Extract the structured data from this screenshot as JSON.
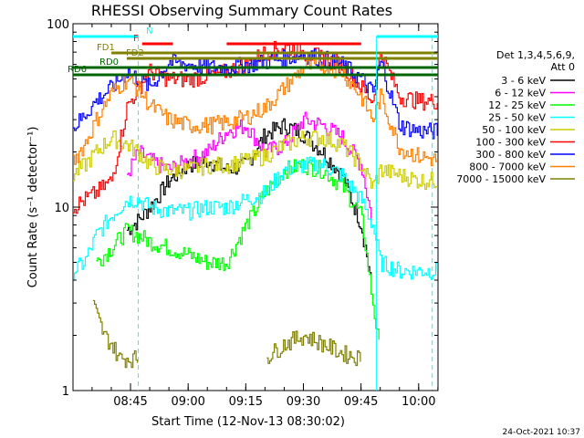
{
  "chart_data": {
    "type": "line",
    "title": "RHESSI Observing Summary Count Rates",
    "xlabel": "Start Time (12-Nov-13 08:30:02)",
    "ylabel": "Count Rate (s⁻¹ detector⁻¹)",
    "yscale": "log",
    "ylim": [
      1,
      100
    ],
    "xlim_minutes_after_0830": [
      0,
      95
    ],
    "x_ticks": [
      "08:45",
      "09:00",
      "09:15",
      "09:30",
      "09:45",
      "10:00"
    ],
    "y_ticks": [
      "1",
      "10",
      "100"
    ],
    "timestamp": "24-Oct-2021 10:37",
    "legend": {
      "header": [
        "Det 1,3,4,5,6,9,",
        "Att 0"
      ],
      "placement": "right",
      "entries": [
        {
          "label": "3 - 6 keV",
          "color": "#000000"
        },
        {
          "label": "6 - 12 keV",
          "color": "#ff00ff"
        },
        {
          "label": "12 - 25 keV",
          "color": "#00ff00"
        },
        {
          "label": "25 - 50 keV",
          "color": "#00ffff"
        },
        {
          "label": "50 - 100 keV",
          "color": "#cccc00"
        },
        {
          "label": "100 - 300 keV",
          "color": "#ff0000"
        },
        {
          "label": "300 - 800 keV",
          "color": "#0000ff"
        },
        {
          "label": "800 - 7000 keV",
          "color": "#ff8000"
        },
        {
          "label": "7000 - 15000 keV",
          "color": "#808000"
        }
      ]
    },
    "flags": [
      {
        "label": "N",
        "color": "#00ffff",
        "segments": [
          [
            0,
            17
          ],
          [
            79,
            95
          ]
        ]
      },
      {
        "label": "F",
        "color": "#ff0000",
        "segments": [
          [
            18,
            26
          ],
          [
            40,
            75
          ]
        ]
      },
      {
        "label": "FD1",
        "color": "#808000",
        "segments": [
          [
            10,
            95
          ]
        ]
      },
      {
        "label": "FD2",
        "color": "#808000",
        "segments": [
          [
            14,
            95
          ]
        ]
      },
      {
        "label": "RD0",
        "color": "#006400",
        "segments": [
          [
            0,
            95
          ]
        ]
      },
      {
        "label": "RD6",
        "color": "#006400",
        "segments": [
          [
            0,
            95
          ]
        ]
      }
    ],
    "series": [
      {
        "name": "3 - 6 keV",
        "color": "#000000",
        "x": [
          0,
          5,
          6,
          14,
          17,
          20,
          25,
          30,
          35,
          40,
          45,
          50,
          55,
          60,
          65,
          70,
          75,
          78
        ],
        "y": [
          null,
          null,
          null,
          7.5,
          8.5,
          10,
          14,
          17,
          18,
          16,
          17,
          25,
          28,
          25,
          20,
          15,
          8,
          3.5
        ]
      },
      {
        "name": "6 - 12 keV",
        "color": "#ff00ff",
        "x": [
          14,
          17,
          20,
          25,
          30,
          35,
          40,
          45,
          50,
          55,
          60,
          65,
          70,
          75,
          78
        ],
        "y": [
          15,
          20,
          18,
          16,
          18,
          20,
          26,
          28,
          20,
          22,
          30,
          28,
          24,
          17,
          8
        ]
      },
      {
        "name": "12 - 25 keV",
        "color": "#00ff00",
        "x": [
          0,
          3,
          6,
          10,
          14,
          17,
          20,
          25,
          30,
          35,
          40,
          45,
          50,
          55,
          60,
          65,
          70,
          75,
          78,
          80
        ],
        "y": [
          null,
          null,
          5,
          6,
          7.5,
          7,
          6.5,
          6,
          5.5,
          5,
          5,
          8,
          12,
          16,
          17,
          16,
          13,
          9,
          3,
          1.5
        ]
      },
      {
        "name": "25 - 50 keV",
        "color": "#00ffff",
        "x": [
          0,
          3,
          6,
          10,
          14,
          17,
          20,
          25,
          30,
          35,
          40,
          45,
          50,
          55,
          60,
          65,
          70,
          75,
          78,
          80,
          85,
          90,
          95
        ],
        "y": [
          4.5,
          5,
          7,
          9,
          11,
          11,
          10,
          9.5,
          9.5,
          10,
          10,
          11,
          12,
          16,
          17,
          17,
          15,
          11,
          8,
          5,
          4.5,
          4.5,
          4.5
        ]
      },
      {
        "name": "50 - 100 keV",
        "color": "#cccc00",
        "x": [
          0,
          3,
          6,
          10,
          14,
          17,
          20,
          25,
          30,
          35,
          40,
          45,
          50,
          55,
          60,
          65,
          70,
          75,
          78,
          80,
          85,
          90,
          95
        ],
        "y": [
          15,
          17,
          20,
          24,
          22,
          20,
          17,
          16,
          16,
          17,
          17,
          18,
          19,
          22,
          24,
          24,
          22,
          17,
          13,
          16,
          15,
          14,
          14
        ]
      },
      {
        "name": "100 - 300 keV",
        "color": "#ff0000",
        "x": [
          0,
          3,
          6,
          10,
          14,
          17,
          20,
          25,
          30,
          35,
          40,
          45,
          50,
          55,
          60,
          65,
          70,
          75,
          78,
          80,
          85,
          90,
          95
        ],
        "y": [
          10,
          11,
          12,
          14,
          35,
          45,
          55,
          50,
          50,
          52,
          55,
          60,
          70,
          75,
          70,
          65,
          60,
          45,
          38,
          70,
          40,
          38,
          38
        ]
      },
      {
        "name": "300 - 800 keV",
        "color": "#0000ff",
        "x": [
          0,
          3,
          6,
          10,
          14,
          17,
          20,
          25,
          30,
          35,
          40,
          45,
          50,
          55,
          60,
          65,
          70,
          75,
          78,
          80,
          85,
          90,
          95
        ],
        "y": [
          27,
          32,
          38,
          45,
          55,
          50,
          45,
          62,
          60,
          58,
          58,
          60,
          62,
          65,
          68,
          65,
          60,
          50,
          42,
          62,
          28,
          26,
          26
        ]
      },
      {
        "name": "800 - 7000 keV",
        "color": "#ff8000",
        "x": [
          0,
          3,
          6,
          10,
          14,
          17,
          20,
          25,
          30,
          35,
          40,
          45,
          50,
          55,
          60,
          65,
          70,
          75,
          78,
          80,
          85,
          90,
          95
        ],
        "y": [
          18,
          22,
          30,
          42,
          50,
          44,
          36,
          30,
          28,
          28,
          29,
          31,
          35,
          45,
          58,
          60,
          55,
          40,
          30,
          40,
          21,
          19,
          18
        ]
      },
      {
        "name": "7000 - 15000 keV",
        "color": "#808000",
        "x": [
          0,
          5,
          8,
          10,
          12,
          15,
          17,
          20,
          50,
          55,
          60,
          65,
          70,
          75,
          78
        ],
        "y": [
          null,
          3,
          2,
          1.8,
          1.5,
          1.5,
          1.5,
          null,
          1.5,
          1.8,
          2,
          1.8,
          1.6,
          1.5,
          null
        ]
      }
    ],
    "vertical_markers": [
      {
        "type": "dashed",
        "x": 17,
        "color": "#00ffff"
      },
      {
        "type": "solid",
        "x": 79,
        "color": "#00ffff"
      },
      {
        "type": "dashed",
        "x": 93.5,
        "color": "#00ffff"
      }
    ]
  }
}
